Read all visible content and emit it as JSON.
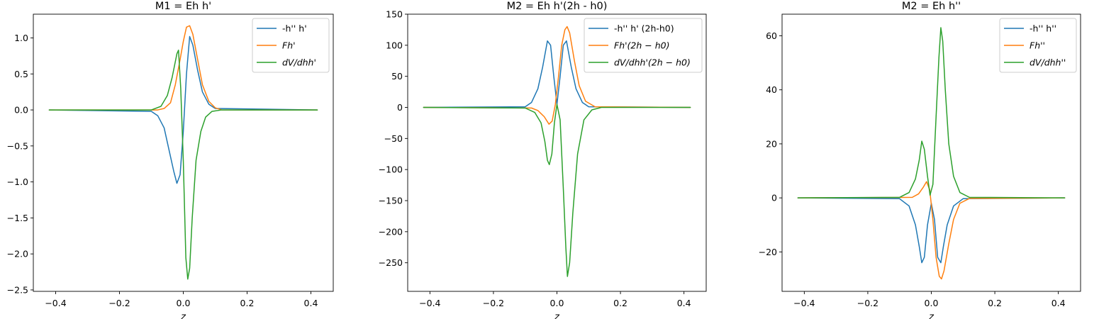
{
  "chart_data": [
    {
      "type": "line",
      "title": "M1 = Eh h'",
      "xlabel": "z",
      "ylabel": "",
      "xlim": [
        -0.47,
        0.47
      ],
      "ylim": [
        -2.52,
        1.33
      ],
      "xticks": [
        -0.4,
        -0.2,
        0.0,
        0.2,
        0.4
      ],
      "xtick_labels": [
        "−0.4",
        "−0.2",
        "0.0",
        "0.2",
        "0.4"
      ],
      "yticks": [
        -2.5,
        -2.0,
        -1.5,
        -1.0,
        -0.5,
        0.0,
        0.5,
        1.0
      ],
      "ytick_labels": [
        "−2.5",
        "−2.0",
        "−1.5",
        "−1.0",
        "−0.5",
        "0.0",
        "0.5",
        "1.0"
      ],
      "legend_position": "top-right",
      "grid": false,
      "series": [
        {
          "name": "-h'' h'",
          "color": "#1f77b4",
          "x": [
            -0.42,
            -0.1,
            -0.08,
            -0.06,
            -0.045,
            -0.03,
            -0.02,
            -0.01,
            0.0,
            0.01,
            0.02,
            0.03,
            0.045,
            0.06,
            0.08,
            0.1,
            0.42
          ],
          "y": [
            0.0,
            -0.02,
            -0.08,
            -0.25,
            -0.55,
            -0.85,
            -1.02,
            -0.9,
            -0.3,
            0.5,
            1.02,
            0.9,
            0.55,
            0.25,
            0.08,
            0.02,
            0.0
          ]
        },
        {
          "name": "Fh'",
          "color": "#ff7f0e",
          "x": [
            -0.42,
            -0.08,
            -0.06,
            -0.04,
            -0.025,
            -0.01,
            0.0,
            0.01,
            0.02,
            0.03,
            0.045,
            0.06,
            0.08,
            0.1,
            0.12,
            0.42
          ],
          "y": [
            0.0,
            0.0,
            0.02,
            0.1,
            0.35,
            0.7,
            0.95,
            1.15,
            1.17,
            1.05,
            0.7,
            0.35,
            0.12,
            0.03,
            0.0,
            0.0
          ]
        },
        {
          "name": "dV/dhh'",
          "color": "#2ca02c",
          "x": [
            -0.42,
            -0.1,
            -0.07,
            -0.05,
            -0.035,
            -0.02,
            -0.015,
            -0.008,
            0.0,
            0.008,
            0.014,
            0.02,
            0.028,
            0.04,
            0.055,
            0.07,
            0.09,
            0.12,
            0.42
          ],
          "y": [
            0.0,
            0.0,
            0.05,
            0.2,
            0.45,
            0.78,
            0.83,
            0.3,
            -0.7,
            -2.05,
            -2.35,
            -2.2,
            -1.5,
            -0.7,
            -0.3,
            -0.1,
            -0.02,
            0.0,
            0.0
          ]
        }
      ]
    },
    {
      "type": "line",
      "title": "M2 = Eh h'(2h - h0)",
      "xlabel": "z",
      "ylabel": "",
      "xlim": [
        -0.47,
        0.47
      ],
      "ylim": [
        -296,
        150
      ],
      "xticks": [
        -0.4,
        -0.2,
        0.0,
        0.2,
        0.4
      ],
      "xtick_labels": [
        "−0.4",
        "−0.2",
        "0.0",
        "0.2",
        "0.4"
      ],
      "yticks": [
        -250,
        -200,
        -150,
        -100,
        -50,
        0,
        50,
        100,
        150
      ],
      "ytick_labels": [
        "−250",
        "−200",
        "−150",
        "−100",
        "−50",
        "0",
        "50",
        "100",
        "150"
      ],
      "legend_position": "top-right",
      "grid": false,
      "series": [
        {
          "name": "-h'' h' (2h-h0)",
          "color": "#1f77b4",
          "x": [
            -0.42,
            -0.1,
            -0.08,
            -0.06,
            -0.045,
            -0.03,
            -0.02,
            -0.01,
            0.0,
            0.01,
            0.02,
            0.03,
            0.045,
            0.06,
            0.08,
            0.1,
            0.42
          ],
          "y": [
            0,
            1,
            8,
            30,
            65,
            107,
            100,
            50,
            5,
            50,
            100,
            107,
            65,
            30,
            8,
            1,
            0
          ]
        },
        {
          "name": "Fh'(2h − h0)",
          "color": "#ff7f0e",
          "x": [
            -0.42,
            -0.08,
            -0.06,
            -0.04,
            -0.025,
            -0.015,
            -0.005,
            0.005,
            0.015,
            0.025,
            0.032,
            0.04,
            0.055,
            0.07,
            0.09,
            0.12,
            0.42
          ],
          "y": [
            0,
            -1,
            -5,
            -15,
            -27,
            -22,
            5,
            50,
            100,
            125,
            130,
            120,
            75,
            35,
            10,
            1,
            0
          ]
        },
        {
          "name": "dV/dhh'(2h − h0)",
          "color": "#2ca02c",
          "x": [
            -0.42,
            -0.1,
            -0.07,
            -0.05,
            -0.038,
            -0.03,
            -0.024,
            -0.016,
            -0.008,
            0.0,
            0.01,
            0.02,
            0.028,
            0.033,
            0.04,
            0.05,
            0.065,
            0.085,
            0.11,
            0.14,
            0.42
          ],
          "y": [
            0,
            -1,
            -8,
            -25,
            -55,
            -85,
            -92,
            -75,
            -25,
            5,
            -20,
            -130,
            -225,
            -272,
            -250,
            -170,
            -75,
            -20,
            -4,
            0,
            0
          ]
        }
      ]
    },
    {
      "type": "line",
      "title": "M2 = Eh h''",
      "xlabel": "z",
      "ylabel": "",
      "xlim": [
        -0.47,
        0.47
      ],
      "ylim": [
        -34.6,
        68
      ],
      "xticks": [
        -0.4,
        -0.2,
        0.0,
        0.2,
        0.4
      ],
      "xtick_labels": [
        "−0.4",
        "−0.2",
        "0.0",
        "0.2",
        "0.4"
      ],
      "yticks": [
        -20,
        0,
        20,
        40,
        60
      ],
      "ytick_labels": [
        "−20",
        "0",
        "20",
        "40",
        "60"
      ],
      "legend_position": "top-right",
      "grid": false,
      "series": [
        {
          "name": "-h'' h''",
          "color": "#1f77b4",
          "x": [
            -0.42,
            -0.1,
            -0.07,
            -0.05,
            -0.038,
            -0.03,
            -0.022,
            -0.012,
            0.0,
            0.01,
            0.02,
            0.03,
            0.038,
            0.05,
            0.07,
            0.1,
            0.42
          ],
          "y": [
            0,
            -0.3,
            -3,
            -10,
            -18,
            -24,
            -22,
            -10,
            -2,
            -8,
            -22,
            -24,
            -18,
            -10,
            -3,
            -0.3,
            0
          ]
        },
        {
          "name": "Fh''",
          "color": "#ff7f0e",
          "x": [
            -0.42,
            -0.06,
            -0.04,
            -0.025,
            -0.015,
            -0.005,
            0.005,
            0.015,
            0.025,
            0.032,
            0.04,
            0.055,
            0.07,
            0.09,
            0.12,
            0.42
          ],
          "y": [
            0,
            0.2,
            1.5,
            4,
            6,
            3,
            -8,
            -22,
            -29,
            -30,
            -27,
            -17,
            -8,
            -2,
            -0.2,
            0
          ]
        },
        {
          "name": "dV/dhh''",
          "color": "#2ca02c",
          "x": [
            -0.42,
            -0.1,
            -0.07,
            -0.05,
            -0.038,
            -0.03,
            -0.022,
            -0.012,
            -0.004,
            0.005,
            0.015,
            0.024,
            0.03,
            0.036,
            0.044,
            0.055,
            0.07,
            0.09,
            0.12,
            0.42
          ],
          "y": [
            0,
            0.2,
            2,
            7,
            14,
            21,
            18,
            8,
            1,
            5,
            30,
            52,
            63,
            58,
            40,
            20,
            8,
            2,
            0.2,
            0
          ]
        }
      ]
    }
  ]
}
